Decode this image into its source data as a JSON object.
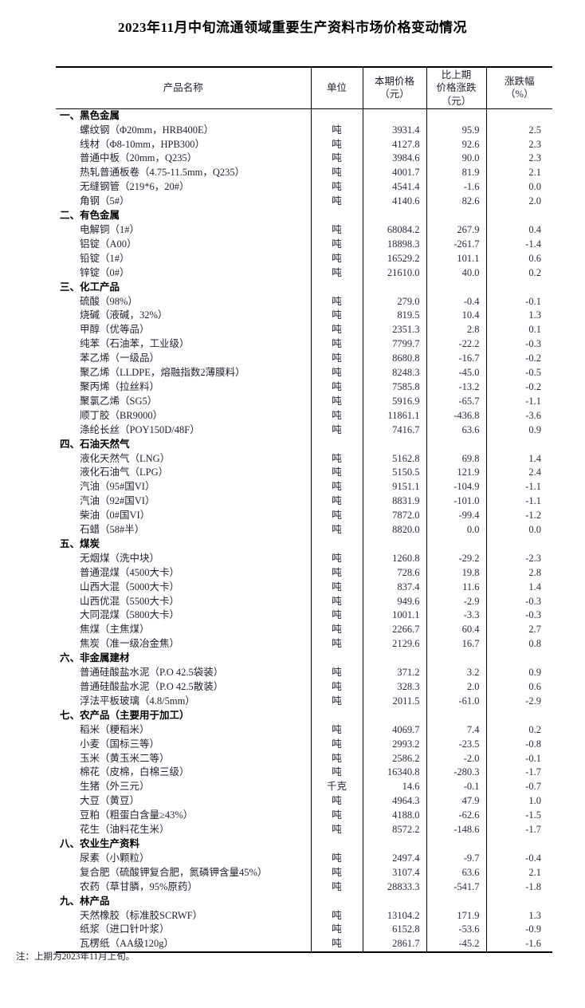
{
  "page": {
    "title": "2023年11月中旬流通领域重要生产资料市场价格变动情况",
    "footnote": "注：上期为2023年11月上旬。"
  },
  "colors": {
    "background": "#ffffff",
    "text": "#1f1f2e",
    "section_text": "#000000",
    "border": "#000000"
  },
  "table": {
    "columns": [
      "产品名称",
      "单位",
      "本期价格\n（元）",
      "比上期\n价格涨跌\n（元）",
      "涨跌幅\n（%）"
    ],
    "sections": [
      {
        "name": "一、黑色金属",
        "rows": [
          {
            "product": "螺纹钢（Φ20mm，HRB400E）",
            "unit": "吨",
            "price": "3931.4",
            "change": "95.9",
            "pct": "2.5"
          },
          {
            "product": "线材（Φ8-10mm，HPB300）",
            "unit": "吨",
            "price": "4127.8",
            "change": "92.6",
            "pct": "2.3"
          },
          {
            "product": "普通中板（20mm，Q235）",
            "unit": "吨",
            "price": "3984.6",
            "change": "90.0",
            "pct": "2.3"
          },
          {
            "product": "热轧普通板卷（4.75-11.5mm，Q235）",
            "unit": "吨",
            "price": "4001.7",
            "change": "81.9",
            "pct": "2.1"
          },
          {
            "product": "无缝钢管（219*6，20#）",
            "unit": "吨",
            "price": "4541.4",
            "change": "-1.6",
            "pct": "0.0"
          },
          {
            "product": "角钢（5#）",
            "unit": "吨",
            "price": "4140.6",
            "change": "82.6",
            "pct": "2.0"
          }
        ]
      },
      {
        "name": "二、有色金属",
        "rows": [
          {
            "product": "电解铜（1#）",
            "unit": "吨",
            "price": "68084.2",
            "change": "267.9",
            "pct": "0.4"
          },
          {
            "product": "铝锭（A00）",
            "unit": "吨",
            "price": "18898.3",
            "change": "-261.7",
            "pct": "-1.4"
          },
          {
            "product": "铅锭（1#）",
            "unit": "吨",
            "price": "16529.2",
            "change": "101.1",
            "pct": "0.6"
          },
          {
            "product": "锌锭（0#）",
            "unit": "吨",
            "price": "21610.0",
            "change": "40.0",
            "pct": "0.2"
          }
        ]
      },
      {
        "name": "三、化工产品",
        "rows": [
          {
            "product": "硫酸（98%）",
            "unit": "吨",
            "price": "279.0",
            "change": "-0.4",
            "pct": "-0.1"
          },
          {
            "product": "烧碱（液碱，32%）",
            "unit": "吨",
            "price": "819.5",
            "change": "10.4",
            "pct": "1.3"
          },
          {
            "product": "甲醇（优等品）",
            "unit": "吨",
            "price": "2351.3",
            "change": "2.8",
            "pct": "0.1"
          },
          {
            "product": "纯苯（石油苯，工业级）",
            "unit": "吨",
            "price": "7799.7",
            "change": "-22.2",
            "pct": "-0.3"
          },
          {
            "product": "苯乙烯（一级品）",
            "unit": "吨",
            "price": "8680.8",
            "change": "-16.7",
            "pct": "-0.2"
          },
          {
            "product": "聚乙烯（LLDPE，熔融指数2薄膜料）",
            "unit": "吨",
            "price": "8248.3",
            "change": "-45.0",
            "pct": "-0.5"
          },
          {
            "product": "聚丙烯（拉丝料）",
            "unit": "吨",
            "price": "7585.8",
            "change": "-13.2",
            "pct": "-0.2"
          },
          {
            "product": "聚氯乙烯（SG5）",
            "unit": "吨",
            "price": "5916.9",
            "change": "-65.7",
            "pct": "-1.1"
          },
          {
            "product": "顺丁胶（BR9000）",
            "unit": "吨",
            "price": "11861.1",
            "change": "-436.8",
            "pct": "-3.6"
          },
          {
            "product": "涤纶长丝（POY150D/48F）",
            "unit": "吨",
            "price": "7416.7",
            "change": "63.6",
            "pct": "0.9"
          }
        ]
      },
      {
        "name": "四、石油天然气",
        "rows": [
          {
            "product": "液化天然气（LNG）",
            "unit": "吨",
            "price": "5162.8",
            "change": "69.8",
            "pct": "1.4"
          },
          {
            "product": "液化石油气（LPG）",
            "unit": "吨",
            "price": "5150.5",
            "change": "121.9",
            "pct": "2.4"
          },
          {
            "product": "汽油（95#国VI）",
            "unit": "吨",
            "price": "9151.1",
            "change": "-104.9",
            "pct": "-1.1"
          },
          {
            "product": "汽油（92#国VI）",
            "unit": "吨",
            "price": "8831.9",
            "change": "-101.0",
            "pct": "-1.1"
          },
          {
            "product": "柴油（0#国VI）",
            "unit": "吨",
            "price": "7872.0",
            "change": "-99.4",
            "pct": "-1.2"
          },
          {
            "product": "石蜡（58#半）",
            "unit": "吨",
            "price": "8820.0",
            "change": "0.0",
            "pct": "0.0"
          }
        ]
      },
      {
        "name": "五、煤炭",
        "rows": [
          {
            "product": "无烟煤（洗中块）",
            "unit": "吨",
            "price": "1260.8",
            "change": "-29.2",
            "pct": "-2.3"
          },
          {
            "product": "普通混煤（4500大卡）",
            "unit": "吨",
            "price": "728.6",
            "change": "19.8",
            "pct": "2.8"
          },
          {
            "product": "山西大混（5000大卡）",
            "unit": "吨",
            "price": "837.4",
            "change": "11.6",
            "pct": "1.4"
          },
          {
            "product": "山西优混（5500大卡）",
            "unit": "吨",
            "price": "949.6",
            "change": "-2.9",
            "pct": "-0.3"
          },
          {
            "product": "大同混煤（5800大卡）",
            "unit": "吨",
            "price": "1001.1",
            "change": "-3.3",
            "pct": "-0.3"
          },
          {
            "product": "焦煤（主焦煤）",
            "unit": "吨",
            "price": "2266.7",
            "change": "60.4",
            "pct": "2.7"
          },
          {
            "product": "焦炭（准一级冶金焦）",
            "unit": "吨",
            "price": "2129.6",
            "change": "16.7",
            "pct": "0.8"
          }
        ]
      },
      {
        "name": "六、非金属建材",
        "rows": [
          {
            "product": "普通硅酸盐水泥（P.O 42.5袋装）",
            "unit": "吨",
            "price": "371.2",
            "change": "3.2",
            "pct": "0.9"
          },
          {
            "product": "普通硅酸盐水泥（P.O 42.5散装）",
            "unit": "吨",
            "price": "328.3",
            "change": "2.0",
            "pct": "0.6"
          },
          {
            "product": "浮法平板玻璃（4.8/5mm）",
            "unit": "吨",
            "price": "2011.5",
            "change": "-61.0",
            "pct": "-2.9"
          }
        ]
      },
      {
        "name": "七、农产品（主要用于加工）",
        "rows": [
          {
            "product": "稻米（粳稻米）",
            "unit": "吨",
            "price": "4069.7",
            "change": "7.4",
            "pct": "0.2"
          },
          {
            "product": "小麦（国标三等）",
            "unit": "吨",
            "price": "2993.2",
            "change": "-23.5",
            "pct": "-0.8"
          },
          {
            "product": "玉米（黄玉米二等）",
            "unit": "吨",
            "price": "2586.2",
            "change": "-2.0",
            "pct": "-0.1"
          },
          {
            "product": "棉花（皮棉，白棉三级）",
            "unit": "吨",
            "price": "16340.8",
            "change": "-280.3",
            "pct": "-1.7"
          },
          {
            "product": "生猪（外三元）",
            "unit": "千克",
            "price": "14.6",
            "change": "-0.1",
            "pct": "-0.7"
          },
          {
            "product": "大豆（黄豆）",
            "unit": "吨",
            "price": "4964.3",
            "change": "47.9",
            "pct": "1.0"
          },
          {
            "product": "豆粕（粗蛋白含量≥43%）",
            "unit": "吨",
            "price": "4188.0",
            "change": "-62.6",
            "pct": "-1.5"
          },
          {
            "product": "花生（油料花生米）",
            "unit": "吨",
            "price": "8572.2",
            "change": "-148.6",
            "pct": "-1.7"
          }
        ]
      },
      {
        "name": "八、农业生产资料",
        "rows": [
          {
            "product": "尿素（小颗粒）",
            "unit": "吨",
            "price": "2497.4",
            "change": "-9.7",
            "pct": "-0.4"
          },
          {
            "product": "复合肥（硫酸钾复合肥，氮磷钾含量45%）",
            "unit": "吨",
            "price": "3107.4",
            "change": "63.6",
            "pct": "2.1"
          },
          {
            "product": "农药（草甘膦，95%原药）",
            "unit": "吨",
            "price": "28833.3",
            "change": "-541.7",
            "pct": "-1.8"
          }
        ]
      },
      {
        "name": "九、林产品",
        "rows": [
          {
            "product": "天然橡胶（标准胶SCRWF）",
            "unit": "吨",
            "price": "13104.2",
            "change": "171.9",
            "pct": "1.3"
          },
          {
            "product": "纸浆（进口针叶浆）",
            "unit": "吨",
            "price": "6152.8",
            "change": "-53.6",
            "pct": "-0.9"
          },
          {
            "product": "瓦楞纸（AA级120g）",
            "unit": "吨",
            "price": "2861.7",
            "change": "-45.2",
            "pct": "-1.6"
          }
        ]
      }
    ]
  }
}
